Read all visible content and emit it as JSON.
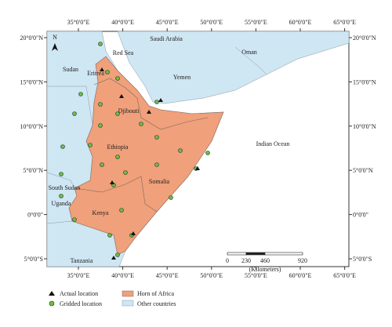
{
  "map": {
    "north": "N",
    "lon_labels": [
      "35°0'0\"E",
      "40°0'0\"E",
      "45°0'0\"E",
      "50°0'0\"E",
      "55°0'0\"E",
      "60°0'0\"E",
      "65°0'0\"E"
    ],
    "lat_labels": [
      "20°0'0\"N",
      "15°0'0\"N",
      "10°0'0\"N",
      "5°0'0\"N",
      "0°0'0\"",
      "5°0'0\"S"
    ],
    "places": {
      "saudi_arabia": "Saudi Arabia",
      "red_sea": "Red Sea",
      "oman": "Oman",
      "yemen": "Yemen",
      "sudan": "Sudan",
      "eritrea": "Eritrea",
      "djibouti": "Djibouti",
      "ethiopia": "Ethiopia",
      "indian_ocean": "Indian Ocean",
      "south_sudan": "South Sudan",
      "somalia": "Somalia",
      "uganda": "Uganda",
      "kenya": "Kenya",
      "tanzania": "Tanzania"
    },
    "scale": {
      "ticks": [
        "0",
        "230",
        "460",
        "920"
      ],
      "unit": "(Kilometers)"
    },
    "legend": {
      "actual": "Actual location",
      "gridded": "Gridded location",
      "horn": "Horn of Africa",
      "other": "Other countries"
    }
  }
}
